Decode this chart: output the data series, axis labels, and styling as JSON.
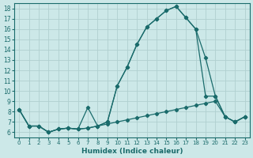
{
  "xlabel": "Humidex (Indice chaleur)",
  "xlim": [
    -0.5,
    23.5
  ],
  "ylim": [
    5.5,
    18.5
  ],
  "xticks": [
    0,
    1,
    2,
    3,
    4,
    5,
    6,
    7,
    8,
    9,
    10,
    11,
    12,
    13,
    14,
    15,
    16,
    17,
    18,
    19,
    20,
    21,
    22,
    23
  ],
  "yticks": [
    6,
    7,
    8,
    9,
    10,
    11,
    12,
    13,
    14,
    15,
    16,
    17,
    18
  ],
  "bg_color": "#cce8e8",
  "grid_color": "#b0d0d0",
  "line_color": "#1a6b6b",
  "line1_x": [
    0,
    1,
    2,
    3,
    4,
    5,
    6,
    7,
    8,
    9,
    10,
    11,
    12,
    13,
    14,
    15,
    16,
    17,
    18,
    19,
    20,
    21,
    22,
    23
  ],
  "line1_y": [
    8.2,
    6.6,
    6.6,
    6.0,
    6.3,
    6.4,
    6.3,
    6.4,
    6.6,
    7.0,
    10.5,
    12.3,
    14.5,
    16.2,
    17.0,
    17.8,
    18.2,
    17.1,
    16.0,
    9.5,
    9.5,
    7.5,
    7.0,
    7.5
  ],
  "line2_x": [
    0,
    1,
    2,
    3,
    4,
    5,
    6,
    7,
    8,
    9,
    10,
    11,
    12,
    13,
    14,
    15,
    16,
    17,
    18,
    19,
    20,
    21,
    22,
    23
  ],
  "line2_y": [
    8.2,
    6.6,
    6.6,
    6.0,
    6.3,
    6.4,
    6.3,
    8.4,
    6.6,
    7.0,
    10.5,
    12.3,
    14.5,
    16.2,
    17.0,
    17.8,
    18.2,
    17.1,
    16.0,
    13.2,
    9.5,
    7.5,
    7.0,
    7.5
  ],
  "line3_x": [
    0,
    1,
    2,
    3,
    4,
    5,
    6,
    7,
    8,
    9,
    10,
    11,
    12,
    13,
    14,
    15,
    16,
    17,
    18,
    19,
    20,
    21,
    22,
    23
  ],
  "line3_y": [
    8.2,
    6.6,
    6.6,
    6.0,
    6.3,
    6.4,
    6.3,
    6.4,
    6.6,
    6.8,
    7.0,
    7.2,
    7.4,
    7.6,
    7.8,
    8.0,
    8.2,
    8.4,
    8.6,
    8.8,
    9.0,
    7.5,
    7.0,
    7.5
  ]
}
